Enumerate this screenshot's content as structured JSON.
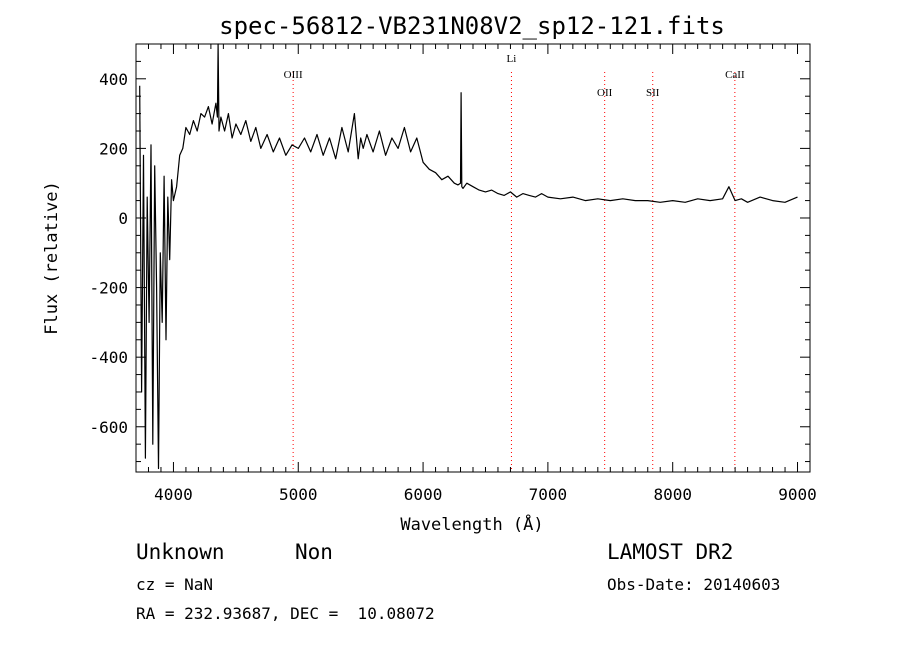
{
  "chart_data": {
    "type": "line",
    "title": "spec-56812-VB231N08V2_sp12-121.fits",
    "xlabel": "Wavelength (Å)",
    "ylabel": "Flux (relative)",
    "xlim": [
      3700,
      9100
    ],
    "ylim": [
      -730,
      500
    ],
    "xticks": [
      4000,
      5000,
      6000,
      7000,
      8000,
      9000
    ],
    "yticks": [
      -600,
      -400,
      -200,
      0,
      200,
      400
    ],
    "grid": false,
    "line_color": "#000000",
    "marker_color": "#ff0000",
    "lines": [
      {
        "name": "OIII",
        "x": 4959
      },
      {
        "name": "Li",
        "x": 6708
      },
      {
        "name": "OII",
        "x": 7455
      },
      {
        "name": "SII",
        "x": 7840
      },
      {
        "name": "CaII",
        "x": 8498
      }
    ],
    "series": [
      {
        "x": [
          3730,
          3745,
          3760,
          3775,
          3790,
          3805,
          3820,
          3835,
          3850,
          3865,
          3880,
          3895,
          3910,
          3925,
          3940,
          3955,
          3970,
          3985,
          4000,
          4025,
          4050,
          4075,
          4100,
          4130,
          4160,
          4190,
          4220,
          4250,
          4280,
          4310,
          4340,
          4352,
          4358,
          4365,
          4380,
          4410,
          4440,
          4470,
          4500,
          4540,
          4580,
          4620,
          4660,
          4700,
          4750,
          4800,
          4850,
          4900,
          4950,
          5000,
          5050,
          5100,
          5150,
          5200,
          5250,
          5300,
          5350,
          5400,
          5450,
          5480,
          5500,
          5520,
          5550,
          5600,
          5650,
          5700,
          5750,
          5800,
          5850,
          5900,
          5950,
          6000,
          6050,
          6100,
          6150,
          6200,
          6250,
          6280,
          6300,
          6305,
          6310,
          6320,
          6350,
          6400,
          6450,
          6500,
          6550,
          6600,
          6650,
          6700,
          6750,
          6800,
          6850,
          6900,
          6950,
          7000,
          7100,
          7200,
          7300,
          7400,
          7500,
          7600,
          7700,
          7800,
          7900,
          8000,
          8100,
          8200,
          8300,
          8400,
          8450,
          8500,
          8550,
          8600,
          8700,
          8800,
          8900,
          9000
        ],
        "y": [
          380,
          -500,
          180,
          -690,
          60,
          -300,
          210,
          -650,
          150,
          -200,
          -720,
          -100,
          -300,
          120,
          -350,
          60,
          -120,
          110,
          50,
          90,
          180,
          200,
          260,
          240,
          280,
          250,
          300,
          290,
          320,
          270,
          330,
          290,
          500,
          250,
          290,
          250,
          300,
          230,
          270,
          240,
          280,
          220,
          260,
          200,
          240,
          190,
          230,
          180,
          210,
          200,
          230,
          190,
          240,
          180,
          230,
          170,
          260,
          190,
          300,
          170,
          230,
          200,
          240,
          190,
          250,
          180,
          230,
          200,
          260,
          190,
          230,
          160,
          140,
          130,
          110,
          120,
          100,
          95,
          100,
          360,
          90,
          85,
          100,
          90,
          80,
          75,
          80,
          70,
          65,
          75,
          60,
          70,
          65,
          60,
          70,
          60,
          55,
          60,
          50,
          55,
          50,
          55,
          50,
          50,
          45,
          50,
          45,
          55,
          50,
          55,
          90,
          50,
          55,
          45,
          60,
          50,
          45,
          60
        ]
      }
    ]
  },
  "footer": {
    "object_class": "Unknown",
    "subclass": "Non",
    "cz_text": "cz = NaN",
    "coords_text": "RA = 232.93687, DEC =  10.08072",
    "survey": "LAMOST DR2",
    "obs_date_text": "Obs-Date: 20140603"
  }
}
